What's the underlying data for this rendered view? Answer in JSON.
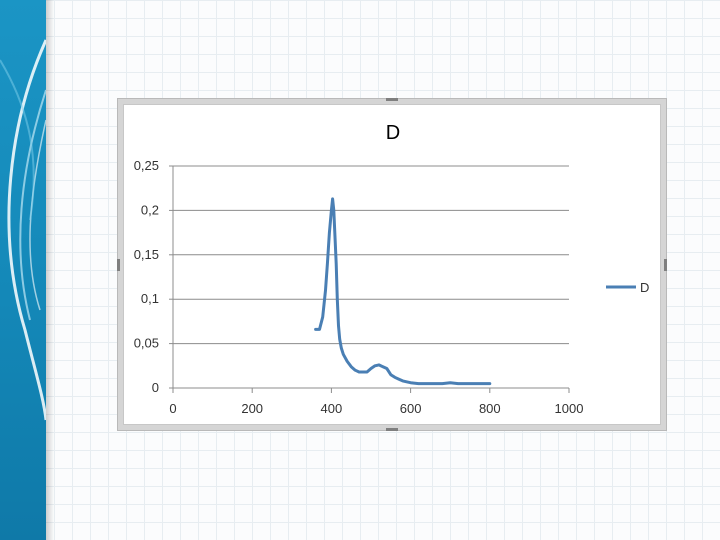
{
  "colors": {
    "accent": "#1488b8",
    "series_line": "#4a7fb4",
    "gridline": "#8c8c8c"
  },
  "chart_data": {
    "type": "line",
    "title": "D",
    "xlabel": "",
    "ylabel": "",
    "xlim": [
      0,
      1000
    ],
    "ylim": [
      0,
      0.25
    ],
    "x_ticks": [
      "0",
      "200",
      "400",
      "600",
      "800",
      "1000"
    ],
    "y_ticks": [
      "0",
      "0,05",
      "0,1",
      "0,15",
      "0,2",
      "0,25"
    ],
    "grid": "horizontal",
    "legend": "right",
    "series": [
      {
        "name": "D",
        "color": "#4a7fb4",
        "x": [
          360,
          370,
          378,
          385,
          390,
          395,
          400,
          403,
          406,
          409,
          412,
          415,
          418,
          421,
          425,
          430,
          440,
          450,
          460,
          470,
          480,
          490,
          500,
          510,
          520,
          530,
          540,
          550,
          560,
          570,
          580,
          590,
          600,
          620,
          640,
          660,
          680,
          700,
          720,
          740,
          760,
          780,
          800
        ],
        "y": [
          0.066,
          0.066,
          0.08,
          0.11,
          0.14,
          0.175,
          0.2,
          0.213,
          0.2,
          0.17,
          0.14,
          0.1,
          0.07,
          0.055,
          0.045,
          0.038,
          0.03,
          0.024,
          0.02,
          0.018,
          0.018,
          0.018,
          0.022,
          0.025,
          0.026,
          0.024,
          0.022,
          0.015,
          0.012,
          0.01,
          0.008,
          0.007,
          0.006,
          0.005,
          0.005,
          0.005,
          0.005,
          0.006,
          0.005,
          0.005,
          0.005,
          0.005,
          0.005
        ]
      }
    ]
  }
}
